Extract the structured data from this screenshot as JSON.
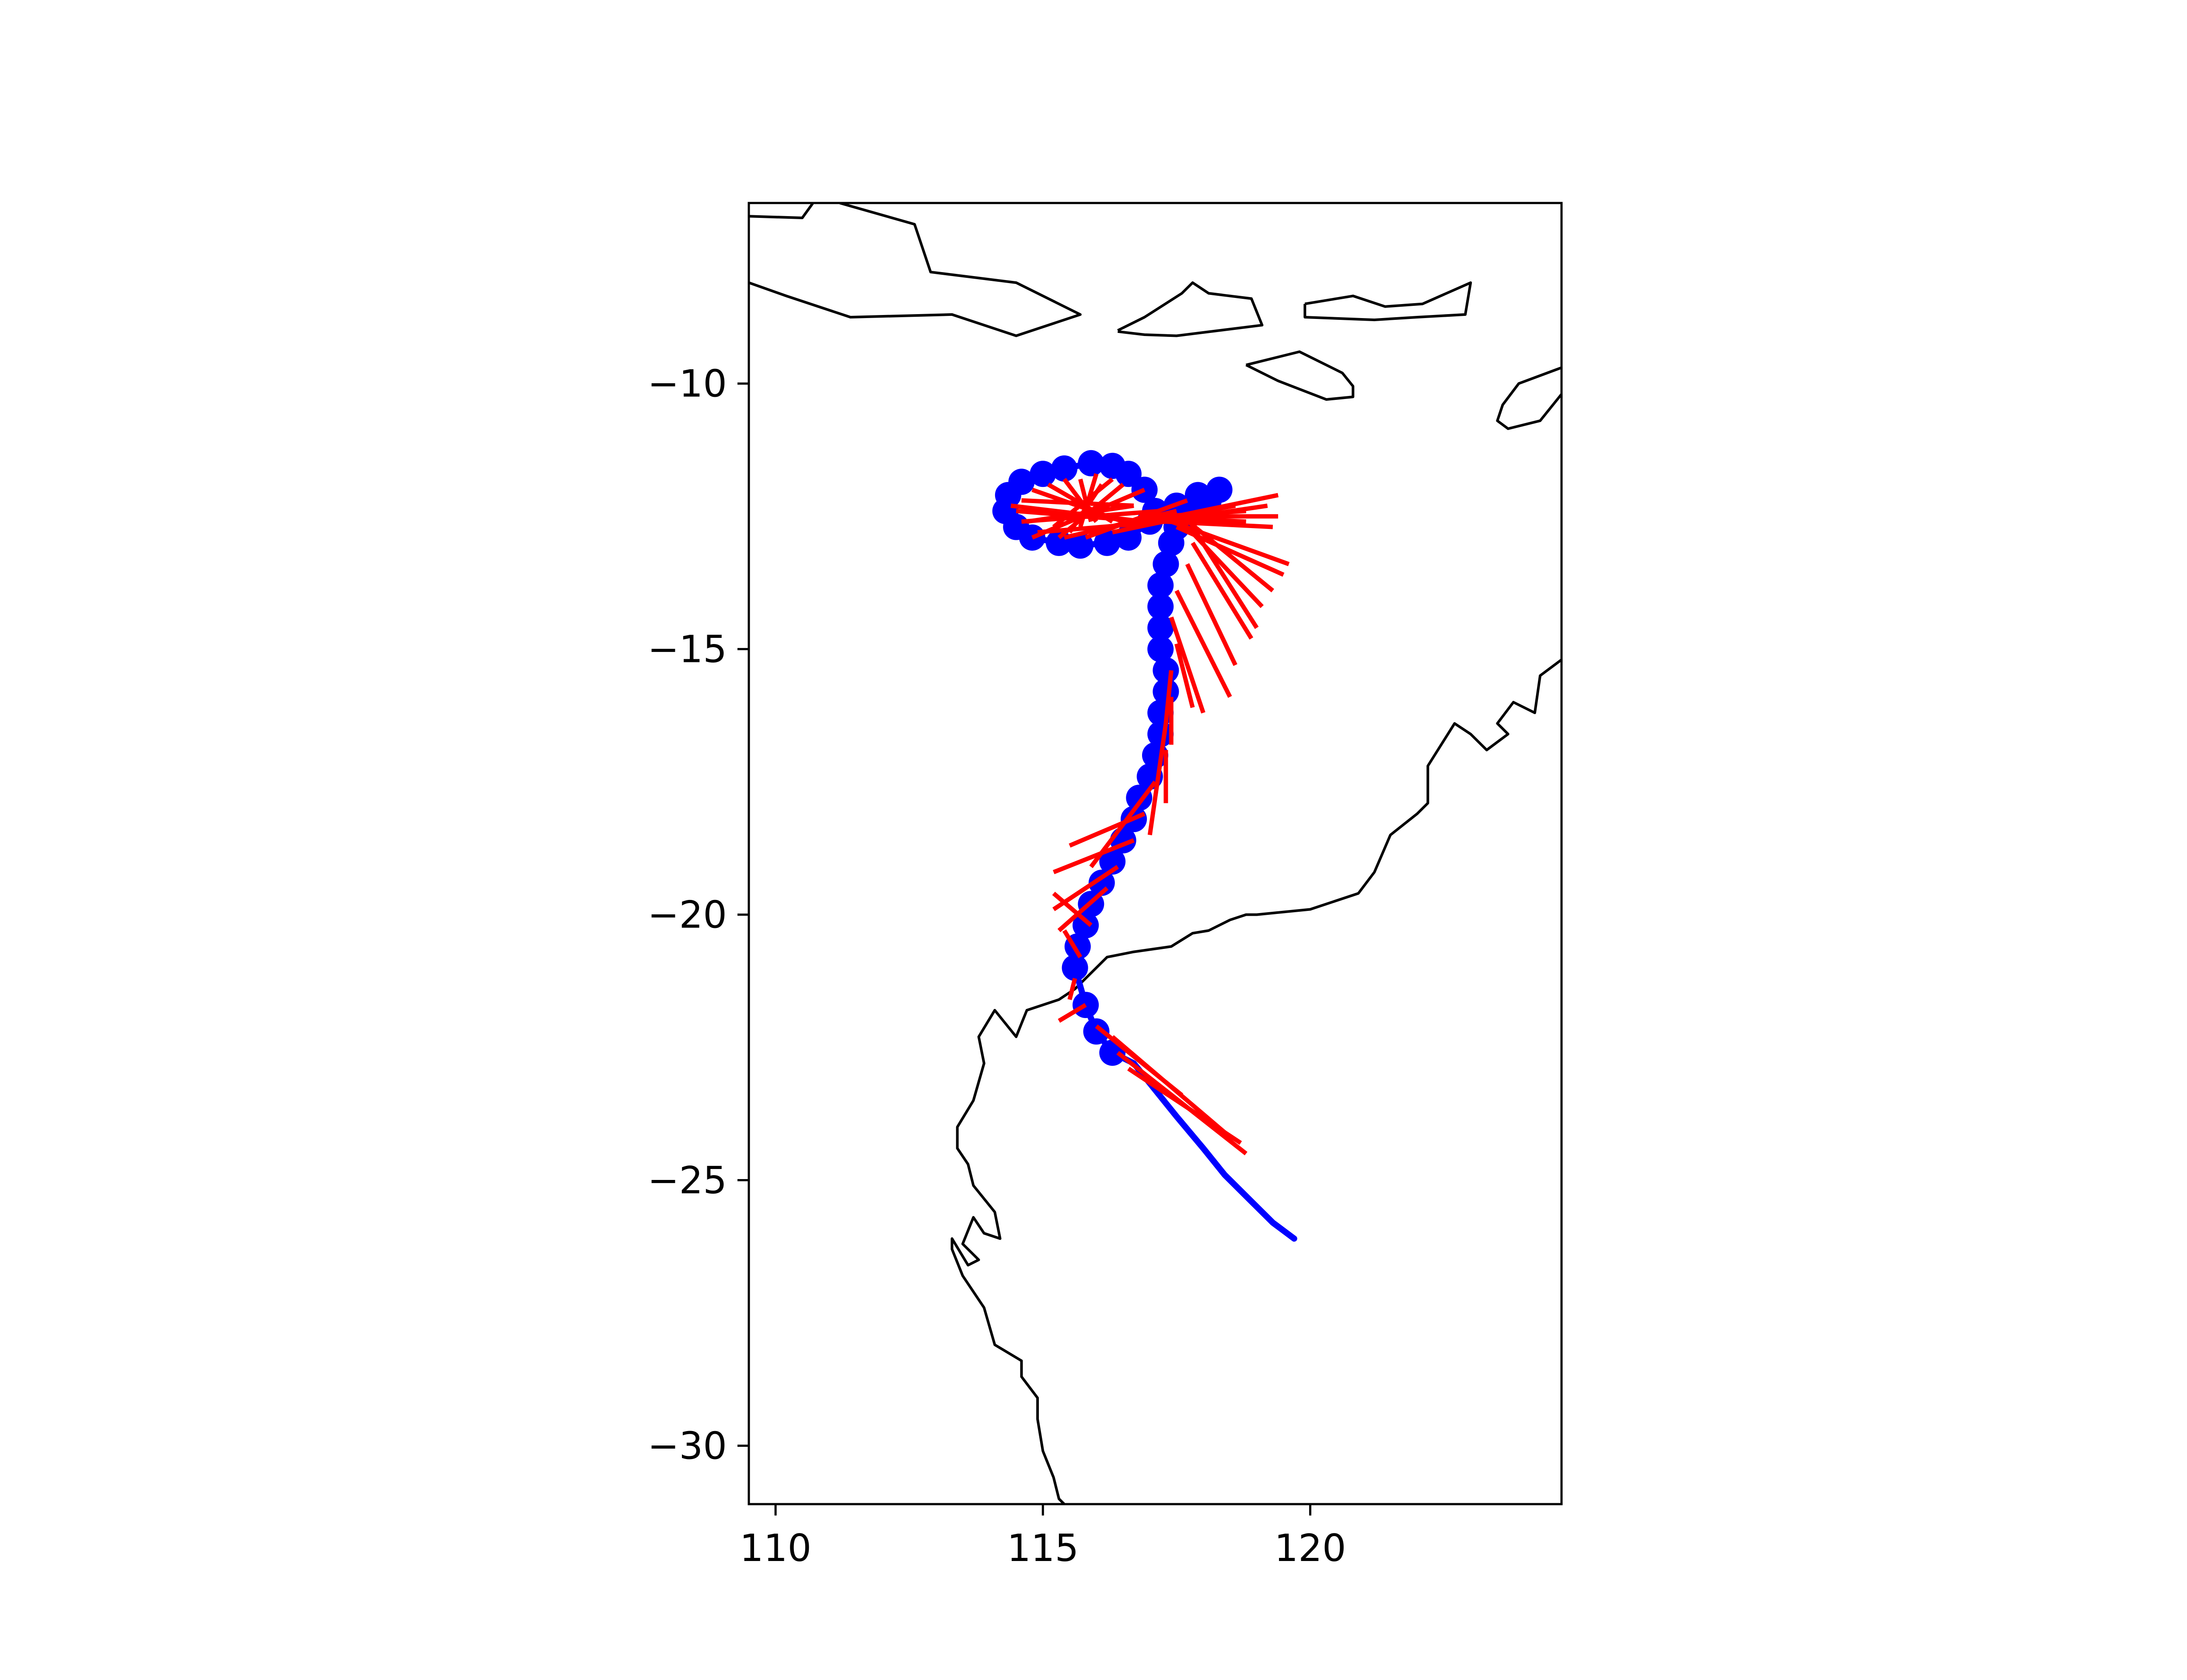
{
  "chart_data": {
    "type": "map",
    "title": "",
    "xlabel": "",
    "ylabel": "",
    "xlim": [
      109.5,
      124.7
    ],
    "ylim": [
      -31.1,
      -6.6
    ],
    "x_ticks": [
      110,
      115,
      120
    ],
    "y_ticks": [
      -10,
      -15,
      -20,
      -25,
      -30
    ],
    "x_tick_labels": [
      "110",
      "115",
      "120"
    ],
    "y_tick_labels": [
      "−10",
      "−15",
      "−20",
      "−25",
      "−30"
    ],
    "grid": false,
    "colors": {
      "coast": "#000000",
      "track": "#0000ff",
      "forecast": "#ff0000",
      "frame": "#000000"
    },
    "coastlines": [
      [
        [
          109.5,
          -6.85
        ],
        [
          110.5,
          -6.88
        ],
        [
          110.7,
          -6.6
        ]
      ],
      [
        [
          111.2,
          -6.6
        ],
        [
          112.6,
          -7.0
        ],
        [
          112.9,
          -7.9
        ],
        [
          114.5,
          -8.1
        ],
        [
          115.7,
          -8.7
        ],
        [
          114.5,
          -9.1
        ],
        [
          113.3,
          -8.7
        ],
        [
          111.4,
          -8.75
        ],
        [
          110.2,
          -8.35
        ],
        [
          109.5,
          -8.1
        ]
      ],
      [
        [
          116.4,
          -9.0
        ],
        [
          116.9,
          -8.75
        ],
        [
          117.6,
          -8.3
        ],
        [
          117.8,
          -8.1
        ],
        [
          118.1,
          -8.3
        ],
        [
          118.9,
          -8.4
        ],
        [
          119.1,
          -8.9
        ],
        [
          117.5,
          -9.1
        ],
        [
          116.9,
          -9.08
        ],
        [
          116.4,
          -9.02
        ]
      ],
      [
        [
          119.9,
          -8.5
        ],
        [
          120.8,
          -8.35
        ],
        [
          121.4,
          -8.55
        ],
        [
          122.1,
          -8.5
        ],
        [
          123.0,
          -8.1
        ],
        [
          122.9,
          -8.7
        ],
        [
          122.0,
          -8.75
        ],
        [
          121.2,
          -8.8
        ],
        [
          119.9,
          -8.75
        ],
        [
          119.9,
          -8.5
        ]
      ],
      [
        [
          118.8,
          -9.65
        ],
        [
          119.8,
          -9.4
        ],
        [
          120.6,
          -9.8
        ],
        [
          120.8,
          -10.05
        ],
        [
          120.8,
          -10.25
        ],
        [
          120.3,
          -10.3
        ],
        [
          119.4,
          -9.95
        ],
        [
          118.8,
          -9.65
        ]
      ],
      [
        [
          124.7,
          -9.7
        ],
        [
          123.9,
          -10.0
        ],
        [
          123.6,
          -10.4
        ],
        [
          123.5,
          -10.7
        ],
        [
          123.7,
          -10.85
        ],
        [
          124.3,
          -10.7
        ],
        [
          124.7,
          -10.2
        ]
      ],
      [
        [
          124.7,
          -15.2
        ],
        [
          124.3,
          -15.5
        ],
        [
          124.2,
          -16.2
        ],
        [
          123.8,
          -16.0
        ],
        [
          123.5,
          -16.4
        ],
        [
          123.7,
          -16.6
        ],
        [
          123.3,
          -16.9
        ],
        [
          123.0,
          -16.6
        ],
        [
          122.7,
          -16.4
        ],
        [
          122.2,
          -17.2
        ],
        [
          122.2,
          -17.9
        ],
        [
          122.0,
          -18.1
        ],
        [
          121.5,
          -18.5
        ],
        [
          121.2,
          -19.2
        ],
        [
          120.9,
          -19.6
        ],
        [
          120.0,
          -19.9
        ],
        [
          119.0,
          -20.0
        ],
        [
          118.8,
          -20.0
        ],
        [
          118.5,
          -20.1
        ],
        [
          118.1,
          -20.3
        ],
        [
          117.8,
          -20.35
        ],
        [
          117.4,
          -20.6
        ],
        [
          116.7,
          -20.7
        ],
        [
          116.2,
          -20.8
        ],
        [
          115.6,
          -21.4
        ],
        [
          115.3,
          -21.6
        ],
        [
          114.7,
          -21.8
        ],
        [
          114.5,
          -22.3
        ],
        [
          114.1,
          -21.8
        ],
        [
          113.8,
          -22.3
        ],
        [
          113.9,
          -22.8
        ],
        [
          113.7,
          -23.5
        ],
        [
          113.4,
          -24.0
        ],
        [
          113.4,
          -24.4
        ],
        [
          113.6,
          -24.7
        ],
        [
          113.7,
          -25.1
        ],
        [
          114.1,
          -25.6
        ],
        [
          114.2,
          -26.1
        ],
        [
          113.9,
          -26.0
        ],
        [
          113.7,
          -25.7
        ],
        [
          113.5,
          -26.2
        ],
        [
          113.8,
          -26.5
        ],
        [
          113.6,
          -26.6
        ],
        [
          113.3,
          -26.1
        ],
        [
          113.3,
          -26.3
        ],
        [
          113.5,
          -26.8
        ],
        [
          113.9,
          -27.4
        ],
        [
          114.1,
          -28.1
        ],
        [
          114.6,
          -28.4
        ],
        [
          114.6,
          -28.7
        ],
        [
          114.9,
          -29.1
        ],
        [
          114.9,
          -29.5
        ],
        [
          115.0,
          -30.1
        ],
        [
          115.2,
          -30.6
        ],
        [
          115.3,
          -31.0
        ],
        [
          115.4,
          -31.1
        ]
      ]
    ],
    "observed_track": [
      [
        119.7,
        -26.1
      ],
      [
        119.3,
        -25.8
      ],
      [
        118.9,
        -25.4
      ],
      [
        118.4,
        -24.9
      ],
      [
        118.0,
        -24.4
      ],
      [
        117.5,
        -23.8
      ],
      [
        117.1,
        -23.3
      ],
      [
        116.7,
        -22.8
      ],
      [
        116.3,
        -22.6
      ],
      [
        116.0,
        -22.2
      ],
      [
        115.8,
        -21.7
      ],
      [
        115.6,
        -21.0
      ],
      [
        115.65,
        -20.6
      ],
      [
        115.8,
        -20.2
      ],
      [
        115.9,
        -19.8
      ],
      [
        116.1,
        -19.4
      ],
      [
        116.3,
        -19.0
      ],
      [
        116.5,
        -18.6
      ],
      [
        116.7,
        -18.2
      ],
      [
        116.8,
        -17.8
      ],
      [
        117.0,
        -17.4
      ],
      [
        117.1,
        -17.0
      ],
      [
        117.2,
        -16.6
      ],
      [
        117.2,
        -16.2
      ],
      [
        117.3,
        -15.8
      ],
      [
        117.3,
        -15.4
      ],
      [
        117.2,
        -15.0
      ],
      [
        117.2,
        -14.6
      ],
      [
        117.2,
        -14.2
      ],
      [
        117.2,
        -13.8
      ],
      [
        117.3,
        -13.4
      ],
      [
        117.4,
        -13.0
      ],
      [
        117.5,
        -12.7
      ],
      [
        117.7,
        -12.5
      ],
      [
        117.9,
        -12.3
      ],
      [
        118.1,
        -12.2
      ],
      [
        118.3,
        -12.0
      ],
      [
        117.9,
        -12.1
      ],
      [
        117.5,
        -12.3
      ],
      [
        117.0,
        -12.6
      ],
      [
        116.6,
        -12.9
      ],
      [
        116.2,
        -13.0
      ],
      [
        115.7,
        -13.05
      ],
      [
        115.3,
        -13.0
      ],
      [
        114.8,
        -12.9
      ],
      [
        114.5,
        -12.7
      ],
      [
        114.3,
        -12.4
      ],
      [
        114.35,
        -12.1
      ],
      [
        114.6,
        -11.85
      ],
      [
        115.0,
        -11.7
      ],
      [
        115.4,
        -11.6
      ],
      [
        115.9,
        -11.5
      ],
      [
        116.3,
        -11.55
      ],
      [
        116.6,
        -11.7
      ],
      [
        116.9,
        -12.0
      ],
      [
        117.1,
        -12.4
      ]
    ],
    "forecast_segments": [
      [
        [
          116.4,
          -22.6
        ],
        [
          118.8,
          -24.5
        ]
      ],
      [
        [
          116.6,
          -22.9
        ],
        [
          118.7,
          -24.3
        ]
      ],
      [
        [
          116.3,
          -22.3
        ],
        [
          118.4,
          -24.1
        ]
      ],
      [
        [
          116.0,
          -22.1
        ],
        [
          117.6,
          -23.4
        ]
      ],
      [
        [
          115.8,
          -21.7
        ],
        [
          115.3,
          -22.0
        ]
      ],
      [
        [
          115.6,
          -21.2
        ],
        [
          115.5,
          -21.6
        ]
      ],
      [
        [
          115.7,
          -20.8
        ],
        [
          115.4,
          -20.3
        ]
      ],
      [
        [
          115.9,
          -20.2
        ],
        [
          115.2,
          -19.6
        ]
      ],
      [
        [
          116.2,
          -19.5
        ],
        [
          115.3,
          -20.3
        ]
      ],
      [
        [
          116.4,
          -19.1
        ],
        [
          115.2,
          -19.9
        ]
      ],
      [
        [
          116.7,
          -18.6
        ],
        [
          115.2,
          -19.2
        ]
      ],
      [
        [
          116.9,
          -18.1
        ],
        [
          115.5,
          -18.7
        ]
      ],
      [
        [
          117.1,
          -17.5
        ],
        [
          115.9,
          -19.1
        ]
      ],
      [
        [
          117.3,
          -16.9
        ],
        [
          117.3,
          -17.9
        ]
      ],
      [
        [
          117.3,
          -16.4
        ],
        [
          117.0,
          -18.5
        ]
      ],
      [
        [
          117.4,
          -15.9
        ],
        [
          117.4,
          -16.8
        ]
      ],
      [
        [
          117.4,
          -15.4
        ],
        [
          117.3,
          -16.4
        ]
      ],
      [
        [
          117.5,
          -14.9
        ],
        [
          117.8,
          -16.1
        ]
      ],
      [
        [
          117.4,
          -14.4
        ],
        [
          118.0,
          -16.2
        ]
      ],
      [
        [
          117.5,
          -13.9
        ],
        [
          118.5,
          -15.9
        ]
      ],
      [
        [
          117.7,
          -13.4
        ],
        [
          118.6,
          -15.3
        ]
      ],
      [
        [
          117.8,
          -13.0
        ],
        [
          118.9,
          -14.8
        ]
      ],
      [
        [
          117.8,
          -12.7
        ],
        [
          119.0,
          -14.6
        ]
      ],
      [
        [
          117.6,
          -12.6
        ],
        [
          119.1,
          -14.2
        ]
      ],
      [
        [
          117.6,
          -12.5
        ],
        [
          119.3,
          -13.9
        ]
      ],
      [
        [
          117.5,
          -12.7
        ],
        [
          119.5,
          -13.6
        ]
      ],
      [
        [
          117.4,
          -12.6
        ],
        [
          119.6,
          -13.4
        ]
      ],
      [
        [
          117.3,
          -12.6
        ],
        [
          119.3,
          -12.7
        ]
      ],
      [
        [
          117.3,
          -12.5
        ],
        [
          119.4,
          -12.5
        ]
      ],
      [
        [
          117.2,
          -12.6
        ],
        [
          119.2,
          -12.3
        ]
      ],
      [
        [
          117.0,
          -12.6
        ],
        [
          119.4,
          -12.1
        ]
      ],
      [
        [
          116.8,
          -12.5
        ],
        [
          118.8,
          -12.6
        ]
      ],
      [
        [
          116.9,
          -12.6
        ],
        [
          114.4,
          -12.3
        ]
      ],
      [
        [
          116.7,
          -12.3
        ],
        [
          114.7,
          -12.6
        ]
      ],
      [
        [
          116.9,
          -12.0
        ],
        [
          114.8,
          -12.9
        ]
      ],
      [
        [
          116.5,
          -11.9
        ],
        [
          115.3,
          -12.9
        ]
      ],
      [
        [
          116.3,
          -11.8
        ],
        [
          115.2,
          -12.7
        ]
      ],
      [
        [
          116.1,
          -11.9
        ],
        [
          115.5,
          -12.8
        ]
      ],
      [
        [
          116.0,
          -11.7
        ],
        [
          115.7,
          -12.7
        ]
      ],
      [
        [
          115.7,
          -11.8
        ],
        [
          115.9,
          -12.6
        ]
      ],
      [
        [
          115.4,
          -11.8
        ],
        [
          116.0,
          -12.6
        ]
      ],
      [
        [
          115.1,
          -11.9
        ],
        [
          116.3,
          -12.6
        ]
      ],
      [
        [
          114.8,
          -12.0
        ],
        [
          116.5,
          -12.6
        ]
      ],
      [
        [
          114.6,
          -12.2
        ],
        [
          116.7,
          -12.3
        ]
      ],
      [
        [
          114.5,
          -12.4
        ],
        [
          117.0,
          -12.6
        ]
      ],
      [
        [
          114.6,
          -12.6
        ],
        [
          117.2,
          -12.4
        ]
      ],
      [
        [
          114.9,
          -12.8
        ],
        [
          117.3,
          -12.6
        ]
      ],
      [
        [
          115.4,
          -12.9
        ],
        [
          117.5,
          -12.4
        ]
      ],
      [
        [
          115.8,
          -12.9
        ],
        [
          117.7,
          -12.2
        ]
      ],
      [
        [
          116.3,
          -12.8
        ],
        [
          118.2,
          -12.4
        ]
      ],
      [
        [
          116.9,
          -12.6
        ],
        [
          118.6,
          -12.3
        ]
      ],
      [
        [
          117.2,
          -12.5
        ],
        [
          118.8,
          -12.4
        ]
      ]
    ]
  }
}
